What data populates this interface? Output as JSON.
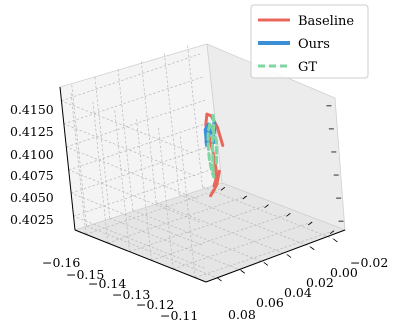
{
  "chart_data": {
    "type": "line",
    "projection": "3d",
    "grid": true,
    "legend_position": "top-right",
    "x_ticks": [
      "−0.16",
      "−0.15",
      "−0.14",
      "−0.13",
      "−0.12",
      "−0.11"
    ],
    "y_ticks": [
      "−0.02",
      "0.00",
      "0.02",
      "0.04",
      "0.06",
      "0.08"
    ],
    "z_ticks": [
      "0.4025",
      "0.4050",
      "0.4075",
      "0.4100",
      "0.4125",
      "0.4150"
    ],
    "xlim": [
      -0.165,
      -0.105
    ],
    "ylim": [
      -0.03,
      0.09
    ],
    "zlim": [
      0.401,
      0.4165
    ],
    "series": [
      {
        "name": "Baseline",
        "color": "#e8675a",
        "style": "solid",
        "points": [
          [
            -0.136,
            0.01,
            0.4095
          ],
          [
            -0.1365,
            0.012,
            0.4115
          ],
          [
            -0.1372,
            0.015,
            0.4128
          ],
          [
            -0.138,
            0.017,
            0.413
          ],
          [
            -0.1385,
            0.018,
            0.4118
          ],
          [
            -0.1383,
            0.016,
            0.41
          ],
          [
            -0.138,
            0.015,
            0.4085
          ],
          [
            -0.1375,
            0.015,
            0.407
          ],
          [
            -0.137,
            0.017,
            0.406
          ],
          [
            -0.1365,
            0.02,
            0.4055
          ],
          [
            -0.136,
            0.018,
            0.4062
          ],
          [
            -0.1355,
            0.016,
            0.407
          ],
          [
            -0.135,
            0.02,
            0.4058
          ],
          [
            -0.1345,
            0.025,
            0.4052
          ],
          [
            -0.134,
            0.028,
            0.405
          ]
        ]
      },
      {
        "name": "Ours",
        "color": "#3b8fd6",
        "style": "solid",
        "points": [
          [
            -0.14,
            0.01,
            0.4095
          ],
          [
            -0.1395,
            0.011,
            0.4108
          ],
          [
            -0.14,
            0.013,
            0.4115
          ],
          [
            -0.1405,
            0.015,
            0.411
          ],
          [
            -0.14,
            0.016,
            0.41
          ],
          [
            -0.1395,
            0.017,
            0.4095
          ],
          [
            -0.139,
            0.018,
            0.41
          ],
          [
            -0.1385,
            0.017,
            0.4105
          ],
          [
            -0.1385,
            0.015,
            0.4112
          ],
          [
            -0.139,
            0.012,
            0.411
          ],
          [
            -0.1395,
            0.01,
            0.4105
          ],
          [
            -0.1395,
            0.009,
            0.4115
          ]
        ]
      },
      {
        "name": "GT",
        "color": "#7ed6a0",
        "style": "dashed",
        "points": [
          [
            -0.142,
            0.005,
            0.412
          ],
          [
            -0.141,
            0.007,
            0.411
          ],
          [
            -0.1405,
            0.01,
            0.41
          ],
          [
            -0.14,
            0.012,
            0.4085
          ],
          [
            -0.1395,
            0.014,
            0.407
          ],
          [
            -0.139,
            0.015,
            0.406
          ],
          [
            -0.1385,
            0.017,
            0.4068
          ],
          [
            -0.1385,
            0.018,
            0.408
          ],
          [
            -0.139,
            0.017,
            0.4095
          ],
          [
            -0.1395,
            0.015,
            0.4108
          ],
          [
            -0.14,
            0.012,
            0.4115
          ],
          [
            -0.1405,
            0.009,
            0.4108
          ],
          [
            -0.14,
            0.008,
            0.4095
          ],
          [
            -0.1395,
            0.01,
            0.408
          ],
          [
            -0.139,
            0.012,
            0.407
          ]
        ]
      }
    ]
  }
}
